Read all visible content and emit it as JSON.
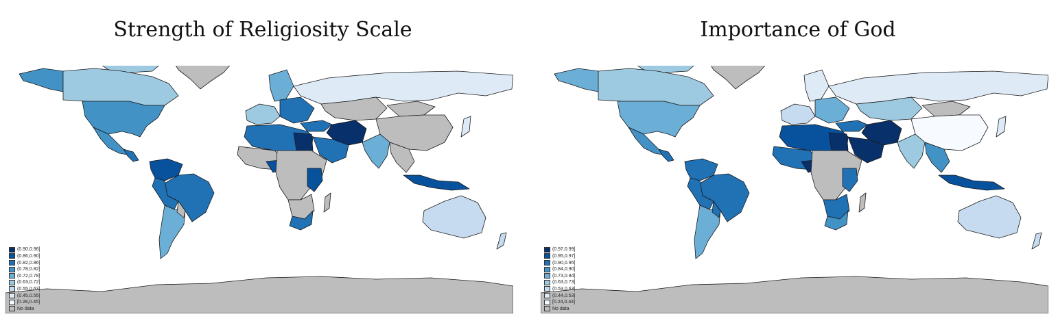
{
  "colors": {
    "scale": [
      "#08306b",
      "#08519c",
      "#2171b5",
      "#4292c6",
      "#6baed6",
      "#9ecae1",
      "#c6dbef",
      "#deebf7",
      "#f7fbff"
    ],
    "no_data": "#bdbdbd",
    "outline": "#1a1a1a"
  },
  "maps": [
    {
      "title": "Strength of Religiosity Scale",
      "legend": [
        "(0.90,0.96]",
        "(0.86,0.90]",
        "(0.82,0.86]",
        "(0.78,0.82]",
        "(0.72,0.78]",
        "(0.63,0.72]",
        "(0.55,0.63]",
        "(0.45,0.55]",
        "[0.28,0.45]",
        "No data"
      ]
    },
    {
      "title": "Importance of God",
      "legend": [
        "(0.97,0.99]",
        "(0.95,0.97]",
        "(0.90,0.95]",
        "(0.84,0.90]",
        "(0.73,0.84]",
        "(0.63,0.73]",
        "(0.53,0.63]",
        "(0.44,0.53]",
        "[0.24,0.44]",
        "No data"
      ]
    }
  ]
}
